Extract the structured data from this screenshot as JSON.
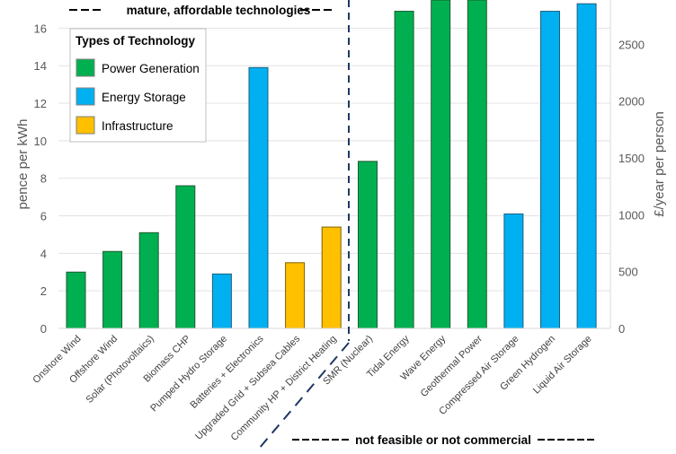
{
  "chart_data": {
    "type": "bar",
    "categories": [
      "Onshore Wind",
      "Offshore Wind",
      "Solar (Photovoltaics)",
      "Biomass CHP",
      "Pumped Hydro Storage",
      "Batteries + Electronics",
      "Upgraded Grid + Subsea Cables",
      "Community HP + District Heating",
      "SMR (Nuclear)",
      "Tidal Energy",
      "Wave Energy",
      "Geothermal Power",
      "Compressed Air Storage",
      "Green Hydrogen",
      "Liquid Air Storage"
    ],
    "values": [
      3.0,
      4.1,
      5.1,
      7.6,
      2.9,
      13.9,
      3.5,
      5.4,
      8.9,
      16.9,
      17.5,
      17.5,
      6.1,
      16.9,
      17.3
    ],
    "types": [
      "Power Generation",
      "Power Generation",
      "Power Generation",
      "Power Generation",
      "Energy Storage",
      "Energy Storage",
      "Infrastructure",
      "Infrastructure",
      "Power Generation",
      "Power Generation",
      "Power Generation",
      "Power Generation",
      "Energy Storage",
      "Energy Storage",
      "Energy Storage"
    ],
    "ylabel": "pence per kWh",
    "ylim": [
      0,
      17.5
    ],
    "yticks": [
      0,
      2,
      4,
      6,
      8,
      10,
      12,
      14,
      16
    ],
    "y2label": "£/year per person",
    "y2lim": [
      0,
      2890
    ],
    "y2ticks": [
      0,
      500,
      1000,
      1500,
      2000,
      2500
    ],
    "grid": true,
    "legend": {
      "title": "Types of Technology",
      "placement": "top-left",
      "entries": [
        {
          "name": "Power Generation",
          "color": "#00b050"
        },
        {
          "name": "Energy Storage",
          "color": "#00b0f0"
        },
        {
          "name": "Infrastructure",
          "color": "#ffc000"
        }
      ]
    },
    "annotations": {
      "left_group": "mature, affordable technologies",
      "right_group": "not feasible or not commercial"
    }
  }
}
